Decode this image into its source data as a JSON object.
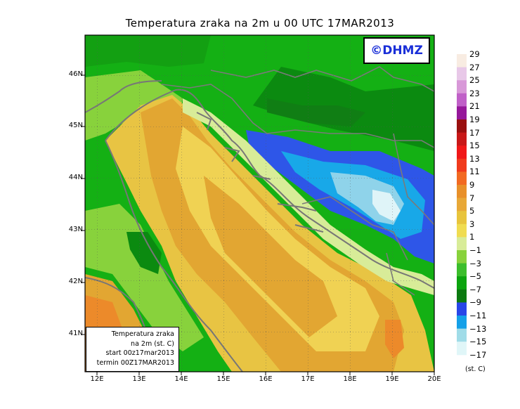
{
  "title": "Temperatura zraka na 2m u 00 UTC 17MAR2013",
  "logo": "©DHMZ",
  "lat_labels": [
    "46N",
    "45N",
    "44N",
    "43N",
    "42N",
    "41N"
  ],
  "lon_labels": [
    "12E",
    "13E",
    "14E",
    "15E",
    "16E",
    "17E",
    "18E",
    "19E",
    "20E"
  ],
  "info": {
    "line1": "Temperatura zraka",
    "line2": "na 2m (st. C)",
    "line3": "start 00z17mar2013",
    "line4": "termin 00Z17MAR2013"
  },
  "legend": {
    "labels": [
      "29",
      "27",
      "25",
      "23",
      "21",
      "19",
      "17",
      "15",
      "13",
      "11",
      "9",
      "7",
      "5",
      "3",
      "1",
      "−1",
      "−3",
      "−5",
      "−7",
      "−9",
      "−11",
      "−13",
      "−15",
      "−17"
    ],
    "colors": [
      "#f8ece2",
      "#e8c8e8",
      "#d898d8",
      "#c060c8",
      "#96189a",
      "#9a1010",
      "#c81818",
      "#f01818",
      "#f03a1c",
      "#f26a22",
      "#e8902a",
      "#e8a838",
      "#e8c43c",
      "#f0dc50",
      "#d8ec98",
      "#88d23c",
      "#3cbe2c",
      "#0ca40e",
      "#0c7a10",
      "#2846e8",
      "#14a0e8",
      "#a0dce8",
      "#e0f6f8"
    ],
    "unit": "(st. C)"
  },
  "map_colors": {
    "sea_warm": "#e8c443",
    "sea_warmer": "#e2a632",
    "land_green": "#14b014",
    "land_dark": "#0b8a10",
    "cold_blue": "#2e56e8",
    "cold_light": "#18a8e8",
    "coast": "#777777"
  }
}
